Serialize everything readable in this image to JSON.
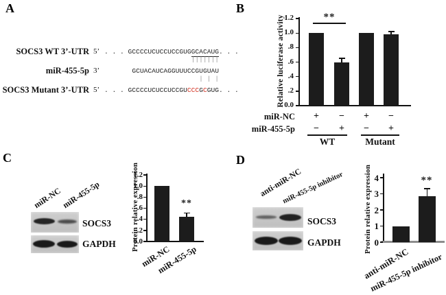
{
  "panel_labels": {
    "a": "A",
    "b": "B",
    "c": "C",
    "d": "D"
  },
  "panelA": {
    "wt": {
      "label": "SOCS3 WT 3’-UTR",
      "prime": "5’",
      "pre": ". . . ",
      "seq": "GCCCCUCUCCUCCGUG",
      "seed": "GCACAUG",
      "post": ". . ."
    },
    "mir": {
      "label": "miR-455-5p",
      "prime": "3’",
      "indent": "       ",
      "seq": "GCUACAUCAGGUUUCCGUGUAU"
    },
    "mut": {
      "label": "SOCS3 Mutant 3’-UTR",
      "prime": "5’",
      "pre": ". . . ",
      "seq": "GCCCCUCUCCUCCGU",
      "red1": "CCC",
      "black1": "G",
      "red2": "C",
      "tail": "GUG. . ."
    },
    "bars_top": "                      |||||||",
    "bars_bottom": "                        | | |",
    "red_color": "#d43425"
  },
  "panelC_blot": {
    "lane1": "miR-NC",
    "lane2": "miR-455-5p",
    "band1": "SOCS3",
    "band2": "GAPDH"
  },
  "panelD_blot": {
    "lane1": "anti-miR-NC",
    "lane2": "miR-455-5p inhibitor",
    "band1": "SOCS3",
    "band2": "GAPDH"
  },
  "chart_data": [
    {
      "id": "B",
      "type": "bar",
      "ylabel": "Relative luciferase activity",
      "ylim": [
        0,
        1.2
      ],
      "grid": false,
      "legend": "none",
      "yticks": [
        "1.2",
        "1.0",
        ".8",
        ".6",
        ".4",
        ".2",
        "0.0"
      ],
      "categories": [
        "WT + miR-NC",
        "WT + miR-455-5p",
        "Mutant + miR-NC",
        "Mutant + miR-455-5p"
      ],
      "values": [
        1.0,
        0.6,
        1.0,
        0.98
      ],
      "errors": [
        0,
        0.06,
        0,
        0.05
      ],
      "significance": "**",
      "significance_between": [
        "WT + miR-NC",
        "WT + miR-455-5p"
      ],
      "condition_rows": [
        {
          "label": "miR-NC",
          "signs": [
            "+",
            "−",
            "+",
            "−"
          ]
        },
        {
          "label": "miR-455-5p",
          "signs": [
            "−",
            "+",
            "−",
            "+"
          ]
        }
      ],
      "group_labels": [
        "WT",
        "Mutant"
      ]
    },
    {
      "id": "C",
      "type": "bar",
      "ylabel": "Protein relative expression",
      "ylim": [
        0,
        1.2
      ],
      "grid": false,
      "legend": "none",
      "yticks": [
        "1.2",
        "1.0",
        ".8",
        ".6",
        ".4",
        ".2",
        "0.0"
      ],
      "categories": [
        "miR-NC",
        "miR-455-5p"
      ],
      "values": [
        1.0,
        0.45
      ],
      "errors": [
        0,
        0.07
      ],
      "significance": "**",
      "sig_on": "miR-455-5p"
    },
    {
      "id": "D",
      "type": "bar",
      "ylabel": "Protein relative expression",
      "ylim": [
        0,
        4
      ],
      "grid": false,
      "legend": "none",
      "yticks": [
        "4",
        "3",
        "2",
        "1",
        "0"
      ],
      "categories": [
        "anti-miR-NC",
        "miR-455-5p inhibitor"
      ],
      "values": [
        1.0,
        2.85
      ],
      "errors": [
        0,
        0.5
      ],
      "significance": "**",
      "sig_on": "miR-455-5p inhibitor"
    }
  ]
}
